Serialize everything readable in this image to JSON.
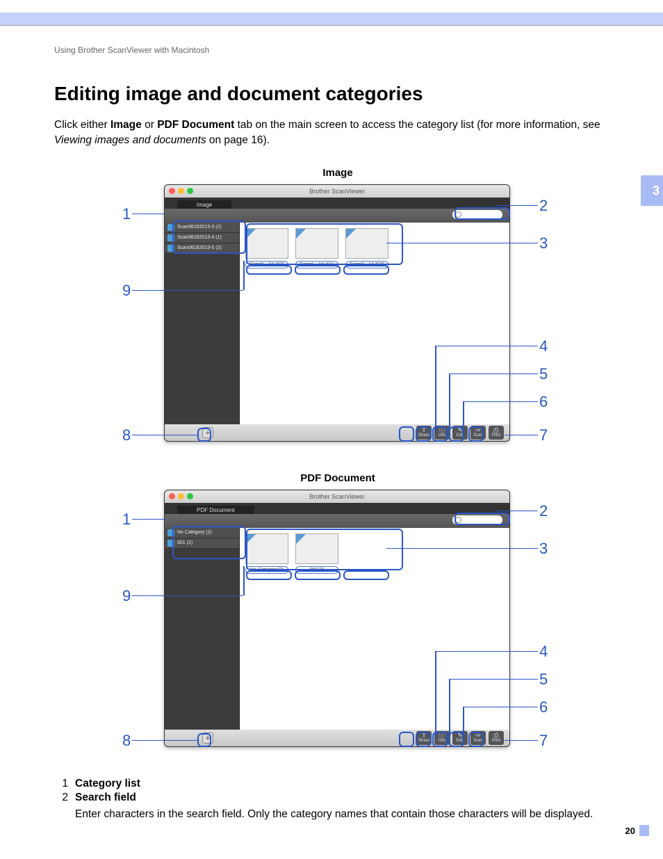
{
  "breadcrumb": "Using Brother ScanViewer with Macintosh",
  "h1": "Editing image and document categories",
  "intro": {
    "t1": "Click either ",
    "b1": "Image",
    "t2": " or ",
    "b2": "PDF Document",
    "t3": " tab on the main screen to access the category list (for more information, see ",
    "i1": "Viewing images and documents",
    "t4": " on page 16)."
  },
  "chapter": "3",
  "page_number": "20",
  "colors": {
    "callout": "#2a56c6",
    "tab_bg": "#a9bbf5",
    "header_band": "#c6d2fc"
  },
  "fig_image": {
    "title": "Image",
    "win_title": "Brother ScanViewer",
    "tab_label": "Image",
    "sidebar": [
      "Scan06182013-3 (2)",
      "Scan06182013-4 (1)",
      "Scan06182013-5 (2)"
    ],
    "thumbs": [
      {
        "label": "Scan0…13-3(2)",
        "type": "flowers"
      },
      {
        "label": "Scan0…13-4(1)",
        "type": "windmill"
      },
      {
        "label": "Scan0…13-5(2)",
        "type": "docthumb"
      }
    ],
    "buttons": [
      {
        "icon": "⇪",
        "label": "Share"
      },
      {
        "icon": "ⓘ",
        "label": "Info"
      },
      {
        "icon": "✎",
        "label": "Edit"
      },
      {
        "icon": "⇨",
        "label": "Scan"
      },
      {
        "icon": "⎙",
        "label": "Print"
      }
    ]
  },
  "fig_pdf": {
    "title": "PDF Document",
    "win_title": "Brother ScanViewer",
    "tab_label": "PDF Document",
    "sidebar": [
      "No Category (2)",
      "001 (2)"
    ],
    "thumbs": [
      {
        "label": "No Category(2)",
        "type": "docthumb"
      },
      {
        "label": "001(2)",
        "type": "docthumb"
      }
    ],
    "buttons": [
      {
        "icon": "⇪",
        "label": "Share"
      },
      {
        "icon": "ⓘ",
        "label": "Info"
      },
      {
        "icon": "✎",
        "label": "Edit"
      },
      {
        "icon": "⇨",
        "label": "Scan"
      },
      {
        "icon": "⎙",
        "label": "Print"
      }
    ]
  },
  "callouts": {
    "left": {
      "n1": "1",
      "n9": "9",
      "n8": "8"
    },
    "right": {
      "n2": "2",
      "n3": "3",
      "n4": "4",
      "n5": "5",
      "n6": "6",
      "n7": "7"
    }
  },
  "legend": [
    {
      "num": "1",
      "title": "Category list",
      "desc": ""
    },
    {
      "num": "2",
      "title": "Search field",
      "desc": "Enter characters in the search field. Only the category names that contain those characters will be displayed."
    }
  ]
}
